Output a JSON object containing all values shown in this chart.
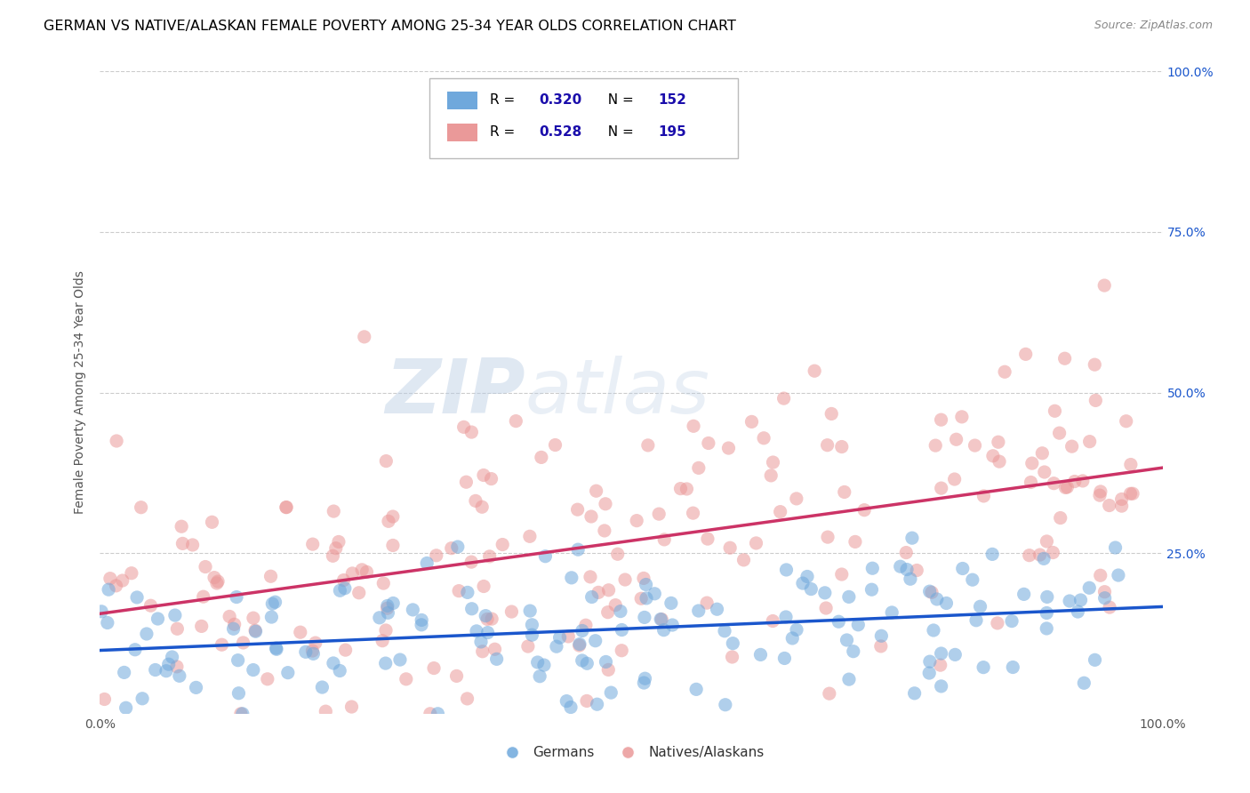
{
  "title": "GERMAN VS NATIVE/ALASKAN FEMALE POVERTY AMONG 25-34 YEAR OLDS CORRELATION CHART",
  "source": "Source: ZipAtlas.com",
  "ylabel": "Female Poverty Among 25-34 Year Olds",
  "xlim": [
    0,
    1
  ],
  "ylim": [
    0,
    1
  ],
  "ytick_positions": [
    0.25,
    0.5,
    0.75,
    1.0
  ],
  "ytick_labels": [
    "25.0%",
    "50.0%",
    "75.0%",
    "100.0%"
  ],
  "blue_color": "#6fa8dc",
  "pink_color": "#ea9999",
  "blue_line_color": "#1a56cc",
  "pink_line_color": "#cc3366",
  "blue_r": 0.32,
  "blue_n": 152,
  "pink_r": 0.528,
  "pink_n": 195,
  "watermark_zip": "ZIP",
  "watermark_atlas": "atlas",
  "background_color": "#ffffff",
  "grid_color": "#cccccc",
  "title_color": "#000000",
  "source_color": "#888888",
  "legend_text_color": "#1a0dab",
  "marker_alpha": 0.55,
  "marker_size": 120,
  "legend_r_values": [
    "0.320",
    "0.528"
  ],
  "legend_n_values": [
    "152",
    "195"
  ]
}
